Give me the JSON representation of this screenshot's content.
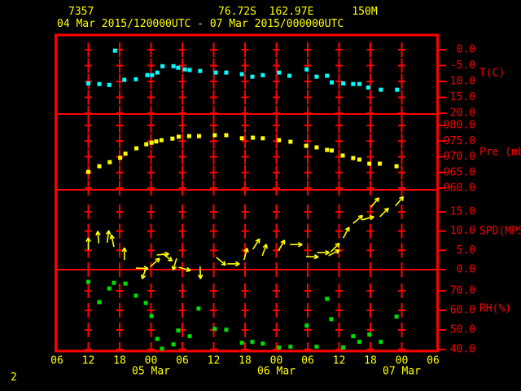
{
  "header": {
    "station_id": "7357",
    "location": "76.72S  162.97E      150M",
    "time_range": "04 Mar 2015/120000UTC - 07 Mar 2015/000000UTC"
  },
  "footer": {
    "page_label": "2"
  },
  "colors": {
    "axis": "#ff0000",
    "label_yellow": "#ffff00",
    "temperature": "#00ffff",
    "pressure": "#ffff00",
    "wind": "#ffff00",
    "humidity": "#00dd00"
  },
  "x_axis": {
    "start_hour": 6,
    "end_hour": 78,
    "tick_interval_hours": 6,
    "hour_labels": [
      "06",
      "12",
      "18",
      "00",
      "06",
      "12",
      "18",
      "00",
      "06",
      "12",
      "18",
      "00",
      "06"
    ],
    "date_labels": [
      {
        "label": "05 Mar",
        "hour": 24
      },
      {
        "label": "06 Mar",
        "hour": 48
      },
      {
        "label": "07 Mar",
        "hour": 72
      }
    ]
  },
  "chart_data": [
    {
      "type": "scatter",
      "name": "temperature",
      "ylabel": "T(C)",
      "color_key": "temperature",
      "ylim": [
        -20.3,
        4.9
      ],
      "ticks": [
        {
          "value": 0,
          "label": "0.0"
        },
        {
          "value": -5,
          "label": "-5.0"
        },
        {
          "value": -10,
          "label": "-10.0"
        },
        {
          "value": -15,
          "label": "-15.0"
        },
        {
          "value": -20,
          "label": "-20.0"
        }
      ],
      "points": [
        [
          12.0,
          -10.6
        ],
        [
          14.1,
          -10.8
        ],
        [
          16.0,
          -11.1
        ],
        [
          17.1,
          -0.3
        ],
        [
          18.9,
          -9.5
        ],
        [
          21.1,
          -9.3
        ],
        [
          23.3,
          -8.0
        ],
        [
          24.2,
          -8.0
        ],
        [
          25.2,
          -7.2
        ],
        [
          26.2,
          -5.2
        ],
        [
          28.3,
          -5.2
        ],
        [
          29.2,
          -5.7
        ],
        [
          30.5,
          -6.2
        ],
        [
          31.4,
          -6.4
        ],
        [
          33.4,
          -6.7
        ],
        [
          36.4,
          -7.2
        ],
        [
          38.4,
          -7.2
        ],
        [
          41.4,
          -7.7
        ],
        [
          43.4,
          -8.5
        ],
        [
          45.4,
          -8.0
        ],
        [
          48.5,
          -7.2
        ],
        [
          50.5,
          -8.2
        ],
        [
          53.8,
          -6.2
        ],
        [
          55.7,
          -8.5
        ],
        [
          57.7,
          -8.2
        ],
        [
          58.6,
          -10.3
        ],
        [
          60.8,
          -10.6
        ],
        [
          62.7,
          -10.8
        ],
        [
          63.9,
          -10.8
        ],
        [
          65.6,
          -11.9
        ],
        [
          68.0,
          -12.6
        ],
        [
          71.1,
          -12.6
        ]
      ]
    },
    {
      "type": "scatter",
      "name": "pressure",
      "ylabel": "Pre (mb)",
      "color_key": "pressure",
      "ylim": [
        959.5,
        983.6
      ],
      "ticks": [
        {
          "value": 980,
          "label": "980.0"
        },
        {
          "value": 975,
          "label": "975.0"
        },
        {
          "value": 970,
          "label": "970.0"
        },
        {
          "value": 965,
          "label": "965.0"
        },
        {
          "value": 960,
          "label": "960.0"
        }
      ],
      "points": [
        [
          12.0,
          965.2
        ],
        [
          14.1,
          967.0
        ],
        [
          16.1,
          968.3
        ],
        [
          18.1,
          969.7
        ],
        [
          19.1,
          971.0
        ],
        [
          21.2,
          972.7
        ],
        [
          23.1,
          974.0
        ],
        [
          24.1,
          974.5
        ],
        [
          25.0,
          974.9
        ],
        [
          26.0,
          975.3
        ],
        [
          28.1,
          975.8
        ],
        [
          29.3,
          976.4
        ],
        [
          31.3,
          976.6
        ],
        [
          33.2,
          976.6
        ],
        [
          36.2,
          976.9
        ],
        [
          38.4,
          976.9
        ],
        [
          41.4,
          975.9
        ],
        [
          43.5,
          976.1
        ],
        [
          45.4,
          975.9
        ],
        [
          48.5,
          975.3
        ],
        [
          50.7,
          974.8
        ],
        [
          53.7,
          973.5
        ],
        [
          55.7,
          973.0
        ],
        [
          57.7,
          972.2
        ],
        [
          58.6,
          972.0
        ],
        [
          60.7,
          970.4
        ],
        [
          62.7,
          969.6
        ],
        [
          63.9,
          969.1
        ],
        [
          65.8,
          967.8
        ],
        [
          67.8,
          967.8
        ],
        [
          71.0,
          967.0
        ]
      ]
    },
    {
      "type": "vector",
      "name": "wind_speed",
      "ylabel": "SPD(MPS)",
      "color_key": "wind",
      "ylim": [
        0,
        20.7
      ],
      "zero_line": true,
      "ticks": [
        {
          "value": 15,
          "label": "15.0"
        },
        {
          "value": 10,
          "label": "10.0"
        },
        {
          "value": 5,
          "label": "5.0"
        },
        {
          "value": 0,
          "label": "0.0"
        }
      ],
      "arrows": [
        [
          12.0,
          5.1,
          0
        ],
        [
          14.0,
          6.8,
          -5
        ],
        [
          15.6,
          7.0,
          8
        ],
        [
          16.9,
          5.9,
          -12
        ],
        [
          18.9,
          2.5,
          0
        ],
        [
          21.1,
          0.4,
          92
        ],
        [
          23.1,
          0.6,
          200
        ],
        [
          23.9,
          0.8,
          48
        ],
        [
          25.1,
          3.8,
          85
        ],
        [
          26.2,
          4.2,
          128
        ],
        [
          28.9,
          2.9,
          197
        ],
        [
          29.3,
          0.6,
          105
        ],
        [
          33.4,
          0.8,
          178
        ],
        [
          36.5,
          3.2,
          130
        ],
        [
          38.6,
          1.5,
          90
        ],
        [
          41.8,
          2.5,
          15
        ],
        [
          43.5,
          5.3,
          33
        ],
        [
          45.3,
          3.6,
          20
        ],
        [
          48.4,
          4.9,
          30
        ],
        [
          50.6,
          6.5,
          90
        ],
        [
          53.7,
          3.4,
          92
        ],
        [
          55.8,
          4.4,
          90
        ],
        [
          58.0,
          3.6,
          62
        ],
        [
          58.4,
          4.6,
          45
        ],
        [
          60.8,
          8.2,
          28
        ],
        [
          62.7,
          12.0,
          50
        ],
        [
          64.4,
          12.9,
          75
        ],
        [
          66.1,
          16.2,
          40
        ],
        [
          67.8,
          13.7,
          45
        ],
        [
          70.8,
          16.5,
          40
        ]
      ]
    },
    {
      "type": "scatter",
      "name": "humidity",
      "ylabel": "RH(%)",
      "color_key": "humidity",
      "ylim": [
        38.8,
        80.8
      ],
      "ticks": [
        {
          "value": 70,
          "label": "70.0"
        },
        {
          "value": 60,
          "label": "60.0"
        },
        {
          "value": 50,
          "label": "50.0"
        },
        {
          "value": 40,
          "label": "40.0"
        }
      ],
      "points": [
        [
          12.0,
          74.6
        ],
        [
          14.1,
          64.2
        ],
        [
          16.0,
          71.2
        ],
        [
          16.9,
          74.1
        ],
        [
          19.1,
          73.7
        ],
        [
          21.1,
          67.5
        ],
        [
          23.0,
          63.8
        ],
        [
          24.1,
          57.1
        ],
        [
          25.2,
          45.4
        ],
        [
          26.1,
          40.4
        ],
        [
          28.3,
          42.6
        ],
        [
          29.2,
          49.7
        ],
        [
          31.4,
          46.8
        ],
        [
          33.1,
          60.9
        ],
        [
          36.2,
          50.5
        ],
        [
          38.4,
          50.1
        ],
        [
          41.4,
          43.4
        ],
        [
          43.4,
          43.9
        ],
        [
          45.4,
          43.0
        ],
        [
          48.5,
          41.0
        ],
        [
          50.7,
          41.4
        ],
        [
          53.8,
          52.2
        ],
        [
          55.7,
          41.4
        ],
        [
          57.7,
          65.9
        ],
        [
          58.5,
          55.5
        ],
        [
          60.8,
          41.0
        ],
        [
          62.7,
          46.8
        ],
        [
          63.9,
          43.9
        ],
        [
          65.8,
          47.6
        ],
        [
          68.0,
          43.9
        ],
        [
          71.0,
          56.8
        ]
      ]
    }
  ]
}
